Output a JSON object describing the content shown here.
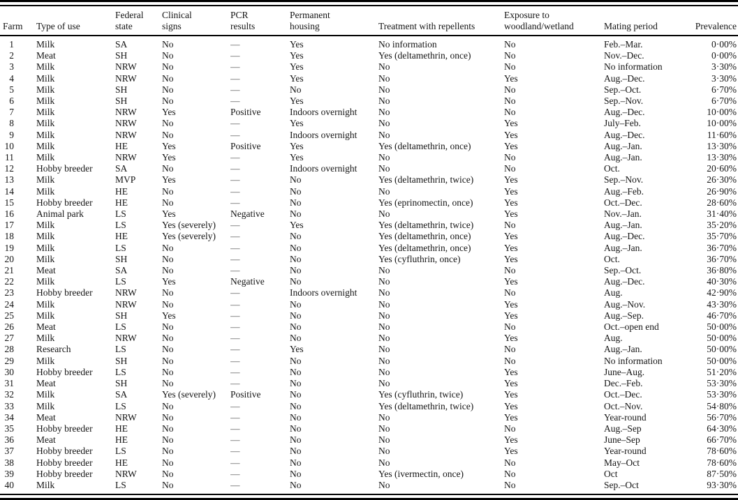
{
  "table": {
    "columns": [
      {
        "label": "Farm"
      },
      {
        "label": "Type of use"
      },
      {
        "label": "Federal\nstate"
      },
      {
        "label": "Clinical\nsigns"
      },
      {
        "label": "PCR\nresults"
      },
      {
        "label": "Permanent\nhousing"
      },
      {
        "label": "Treatment with repellents"
      },
      {
        "label": "Exposure to\nwoodland/wetland"
      },
      {
        "label": "Mating period"
      },
      {
        "label": "Prevalence"
      }
    ],
    "rows": [
      [
        "1",
        "Milk",
        "SA",
        "No",
        "—",
        "Yes",
        "No information",
        "No",
        "Feb.–Mar.",
        "0·00%"
      ],
      [
        "2",
        "Meat",
        "SH",
        "No",
        "—",
        "Yes",
        "Yes (deltamethrin, once)",
        "No",
        "Nov.–Dec.",
        "0·00%"
      ],
      [
        "3",
        "Milk",
        "NRW",
        "No",
        "—",
        "Yes",
        "No",
        "No",
        "No information",
        "3·30%"
      ],
      [
        "4",
        "Milk",
        "NRW",
        "No",
        "—",
        "Yes",
        "No",
        "Yes",
        "Aug.–Dec.",
        "3·30%"
      ],
      [
        "5",
        "Milk",
        "SH",
        "No",
        "—",
        "No",
        "No",
        "No",
        "Sep.–Oct.",
        "6·70%"
      ],
      [
        "6",
        "Milk",
        "SH",
        "No",
        "—",
        "Yes",
        "No",
        "No",
        "Sep.–Nov.",
        "6·70%"
      ],
      [
        "7",
        "Milk",
        "NRW",
        "Yes",
        "Positive",
        "Indoors overnight",
        "No",
        "No",
        "Aug.–Dec.",
        "10·00%"
      ],
      [
        "8",
        "Milk",
        "NRW",
        "No",
        "—",
        "Yes",
        "No",
        "Yes",
        "July–Feb.",
        "10·00%"
      ],
      [
        "9",
        "Milk",
        "NRW",
        "No",
        "—",
        "Indoors overnight",
        "No",
        "Yes",
        "Aug.–Dec.",
        "11·60%"
      ],
      [
        "10",
        "Milk",
        "HE",
        "Yes",
        "Positive",
        "Yes",
        "Yes (deltamethrin, once)",
        "Yes",
        "Aug.–Jan.",
        "13·30%"
      ],
      [
        "11",
        "Milk",
        "NRW",
        "Yes",
        "—",
        "Yes",
        "No",
        "No",
        "Aug.–Jan.",
        "13·30%"
      ],
      [
        "12",
        "Hobby breeder",
        "SA",
        "No",
        "—",
        "Indoors overnight",
        "No",
        "No",
        "Oct.",
        "20·60%"
      ],
      [
        "13",
        "Milk",
        "MVP",
        "Yes",
        "—",
        "No",
        "Yes (deltamethrin, twice)",
        "Yes",
        "Sep.–Nov.",
        "26·30%"
      ],
      [
        "14",
        "Milk",
        "HE",
        "No",
        "—",
        "No",
        "No",
        "Yes",
        "Aug.–Feb.",
        "26·90%"
      ],
      [
        "15",
        "Hobby breeder",
        "HE",
        "No",
        "—",
        "No",
        "Yes (eprinomectin, once)",
        "Yes",
        "Oct.–Dec.",
        "28·60%"
      ],
      [
        "16",
        "Animal park",
        "LS",
        "Yes",
        "Negative",
        "No",
        "No",
        "Yes",
        "Nov.–Jan.",
        "31·40%"
      ],
      [
        "17",
        "Milk",
        "LS",
        "Yes (severely)",
        "—",
        "Yes",
        "Yes (deltamethrin, twice)",
        "No",
        "Aug.–Jan.",
        "35·20%"
      ],
      [
        "18",
        "Milk",
        "HE",
        "Yes (severely)",
        "—",
        "No",
        "Yes (deltamethrin, once)",
        "Yes",
        "Aug.–Dec.",
        "35·70%"
      ],
      [
        "19",
        "Milk",
        "LS",
        "No",
        "—",
        "No",
        "Yes (deltamethrin, once)",
        "Yes",
        "Aug.–Jan.",
        "36·70%"
      ],
      [
        "20",
        "Milk",
        "SH",
        "No",
        "—",
        "No",
        "Yes (cyfluthrin, once)",
        "Yes",
        "Oct.",
        "36·70%"
      ],
      [
        "21",
        "Meat",
        "SA",
        "No",
        "—",
        "No",
        "No",
        "No",
        "Sep.–Oct.",
        "36·80%"
      ],
      [
        "22",
        "Milk",
        "LS",
        "Yes",
        "Negative",
        "No",
        "No",
        "Yes",
        "Aug.–Dec.",
        "40·30%"
      ],
      [
        "23",
        "Hobby breeder",
        "NRW",
        "No",
        "—",
        "Indoors overnight",
        "No",
        "No",
        "Aug.",
        "42·90%"
      ],
      [
        "24",
        "Milk",
        "NRW",
        "No",
        "—",
        "No",
        "No",
        "Yes",
        "Aug.–Nov.",
        "43·30%"
      ],
      [
        "25",
        "Milk",
        "SH",
        "Yes",
        "—",
        "No",
        "No",
        "Yes",
        "Aug.–Sep.",
        "46·70%"
      ],
      [
        "26",
        "Meat",
        "LS",
        "No",
        "—",
        "No",
        "No",
        "No",
        "Oct.–open end",
        "50·00%"
      ],
      [
        "27",
        "Milk",
        "NRW",
        "No",
        "—",
        "No",
        "No",
        "Yes",
        "Aug.",
        "50·00%"
      ],
      [
        "28",
        "Research",
        "LS",
        "No",
        "—",
        "Yes",
        "No",
        "No",
        "Aug.–Jan.",
        "50·00%"
      ],
      [
        "29",
        "Milk",
        "SH",
        "No",
        "—",
        "No",
        "No",
        "No",
        "No information",
        "50·00%"
      ],
      [
        "30",
        "Hobby breeder",
        "LS",
        "No",
        "—",
        "No",
        "No",
        "Yes",
        "June–Aug.",
        "51·20%"
      ],
      [
        "31",
        "Meat",
        "SH",
        "No",
        "—",
        "No",
        "No",
        "Yes",
        "Dec.–Feb.",
        "53·30%"
      ],
      [
        "32",
        "Milk",
        "SA",
        "Yes (severely)",
        "Positive",
        "No",
        "Yes (cyfluthrin, twice)",
        "Yes",
        "Oct.–Dec.",
        "53·30%"
      ],
      [
        "33",
        "Milk",
        "LS",
        "No",
        "—",
        "No",
        "Yes (deltamethrin, twice)",
        "Yes",
        "Oct.–Nov.",
        "54·80%"
      ],
      [
        "34",
        "Meat",
        "NRW",
        "No",
        "—",
        "No",
        "No",
        "Yes",
        "Year-round",
        "56·70%"
      ],
      [
        "35",
        "Hobby breeder",
        "HE",
        "No",
        "—",
        "No",
        "No",
        "No",
        "Aug.–Sep",
        "64·30%"
      ],
      [
        "36",
        "Meat",
        "HE",
        "No",
        "—",
        "No",
        "No",
        "Yes",
        "June–Sep",
        "66·70%"
      ],
      [
        "37",
        "Hobby breeder",
        "LS",
        "No",
        "—",
        "No",
        "No",
        "Yes",
        "Year-round",
        "78·60%"
      ],
      [
        "38",
        "Hobby breeder",
        "HE",
        "No",
        "—",
        "No",
        "No",
        "No",
        "May–Oct",
        "78·60%"
      ],
      [
        "39",
        "Hobby breeder",
        "NRW",
        "No",
        "—",
        "No",
        "Yes (ivermectin, once)",
        "No",
        "Oct",
        "87·50%"
      ],
      [
        "40",
        "Milk",
        "LS",
        "No",
        "—",
        "No",
        "No",
        "No",
        "Sep.–Oct",
        "93·30%"
      ]
    ]
  }
}
